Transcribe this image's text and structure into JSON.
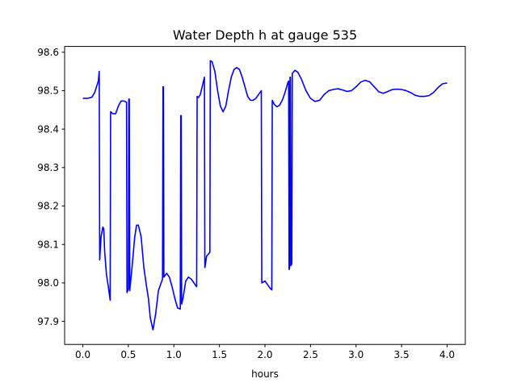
{
  "chart_data": {
    "type": "line",
    "title": "Water Depth h at gauge 535",
    "xlabel": "hours",
    "ylabel": "",
    "xlim": [
      -0.2,
      4.2
    ],
    "ylim": [
      97.84,
      98.615
    ],
    "xticks": [
      0.0,
      0.5,
      1.0,
      1.5,
      2.0,
      2.5,
      3.0,
      3.5,
      4.0
    ],
    "xtick_labels": [
      "0.0",
      "0.5",
      "1.0",
      "1.5",
      "2.0",
      "2.5",
      "3.0",
      "3.5",
      "4.0"
    ],
    "yticks": [
      97.9,
      98.0,
      98.1,
      98.2,
      98.3,
      98.4,
      98.5,
      98.6
    ],
    "ytick_labels": [
      "97.9",
      "98.0",
      "98.1",
      "98.2",
      "98.3",
      "98.4",
      "98.5",
      "98.6"
    ],
    "grid": false,
    "colors": {
      "series": "#0000ff"
    },
    "series": [
      {
        "name": "",
        "points": [
          [
            0.0,
            98.48
          ],
          [
            0.05,
            98.48
          ],
          [
            0.1,
            98.483
          ],
          [
            0.13,
            98.495
          ],
          [
            0.15,
            98.51
          ],
          [
            0.17,
            98.525
          ],
          [
            0.18,
            98.55
          ],
          [
            0.185,
            98.06
          ],
          [
            0.2,
            98.12
          ],
          [
            0.22,
            98.145
          ],
          [
            0.23,
            98.14
          ],
          [
            0.24,
            98.08
          ],
          [
            0.26,
            98.02
          ],
          [
            0.28,
            97.99
          ],
          [
            0.3,
            97.955
          ],
          [
            0.305,
            98.445
          ],
          [
            0.33,
            98.44
          ],
          [
            0.36,
            98.44
          ],
          [
            0.39,
            98.46
          ],
          [
            0.42,
            98.473
          ],
          [
            0.45,
            98.473
          ],
          [
            0.48,
            98.47
          ],
          [
            0.485,
            97.975
          ],
          [
            0.5,
            97.985
          ],
          [
            0.505,
            98.478
          ],
          [
            0.51,
            98.478
          ],
          [
            0.515,
            97.98
          ],
          [
            0.54,
            98.04
          ],
          [
            0.57,
            98.12
          ],
          [
            0.59,
            98.15
          ],
          [
            0.61,
            98.15
          ],
          [
            0.64,
            98.12
          ],
          [
            0.67,
            98.04
          ],
          [
            0.7,
            97.99
          ],
          [
            0.72,
            97.96
          ],
          [
            0.74,
            97.91
          ],
          [
            0.77,
            97.878
          ],
          [
            0.8,
            97.92
          ],
          [
            0.83,
            97.98
          ],
          [
            0.86,
            98.0
          ],
          [
            0.875,
            98.01
          ],
          [
            0.88,
            98.51
          ],
          [
            0.885,
            98.51
          ],
          [
            0.89,
            98.015
          ],
          [
            0.92,
            98.025
          ],
          [
            0.95,
            98.015
          ],
          [
            0.98,
            97.99
          ],
          [
            1.01,
            97.96
          ],
          [
            1.04,
            97.935
          ],
          [
            1.07,
            97.932
          ],
          [
            1.075,
            98.435
          ],
          [
            1.08,
            98.435
          ],
          [
            1.085,
            97.945
          ],
          [
            1.1,
            97.96
          ],
          [
            1.13,
            98.005
          ],
          [
            1.16,
            98.015
          ],
          [
            1.19,
            98.01
          ],
          [
            1.22,
            98.0
          ],
          [
            1.25,
            97.99
          ],
          [
            1.255,
            98.485
          ],
          [
            1.27,
            98.482
          ],
          [
            1.29,
            98.49
          ],
          [
            1.31,
            98.51
          ],
          [
            1.335,
            98.535
          ],
          [
            1.34,
            98.04
          ],
          [
            1.36,
            98.07
          ],
          [
            1.38,
            98.075
          ],
          [
            1.395,
            98.08
          ],
          [
            1.4,
            98.578
          ],
          [
            1.42,
            98.575
          ],
          [
            1.45,
            98.55
          ],
          [
            1.48,
            98.5
          ],
          [
            1.51,
            98.46
          ],
          [
            1.54,
            98.445
          ],
          [
            1.57,
            98.46
          ],
          [
            1.6,
            98.5
          ],
          [
            1.63,
            98.535
          ],
          [
            1.66,
            98.555
          ],
          [
            1.69,
            98.56
          ],
          [
            1.72,
            98.555
          ],
          [
            1.75,
            98.535
          ],
          [
            1.78,
            98.51
          ],
          [
            1.81,
            98.485
          ],
          [
            1.84,
            98.475
          ],
          [
            1.87,
            98.475
          ],
          [
            1.9,
            98.48
          ],
          [
            1.93,
            98.49
          ],
          [
            1.96,
            98.5
          ],
          [
            1.965,
            98.0
          ],
          [
            2.0,
            98.005
          ],
          [
            2.03,
            97.995
          ],
          [
            2.06,
            97.985
          ],
          [
            2.075,
            97.982
          ],
          [
            2.08,
            98.475
          ],
          [
            2.1,
            98.465
          ],
          [
            2.13,
            98.458
          ],
          [
            2.16,
            98.462
          ],
          [
            2.19,
            98.475
          ],
          [
            2.22,
            98.495
          ],
          [
            2.25,
            98.52
          ],
          [
            2.26,
            98.525
          ],
          [
            2.265,
            98.035
          ],
          [
            2.27,
            98.04
          ],
          [
            2.275,
            98.535
          ],
          [
            2.28,
            98.535
          ],
          [
            2.285,
            98.045
          ],
          [
            2.295,
            98.05
          ],
          [
            2.3,
            98.545
          ],
          [
            2.33,
            98.553
          ],
          [
            2.36,
            98.548
          ],
          [
            2.4,
            98.53
          ],
          [
            2.45,
            98.5
          ],
          [
            2.5,
            98.48
          ],
          [
            2.55,
            98.472
          ],
          [
            2.6,
            98.475
          ],
          [
            2.65,
            98.49
          ],
          [
            2.7,
            98.5
          ],
          [
            2.75,
            98.503
          ],
          [
            2.8,
            98.505
          ],
          [
            2.85,
            98.502
          ],
          [
            2.9,
            98.498
          ],
          [
            2.95,
            98.5
          ],
          [
            3.0,
            98.51
          ],
          [
            3.05,
            98.522
          ],
          [
            3.1,
            98.527
          ],
          [
            3.15,
            98.523
          ],
          [
            3.2,
            98.51
          ],
          [
            3.25,
            98.497
          ],
          [
            3.3,
            98.493
          ],
          [
            3.35,
            98.498
          ],
          [
            3.4,
            98.503
          ],
          [
            3.45,
            98.504
          ],
          [
            3.5,
            98.503
          ],
          [
            3.55,
            98.5
          ],
          [
            3.6,
            98.495
          ],
          [
            3.65,
            98.488
          ],
          [
            3.7,
            98.485
          ],
          [
            3.75,
            98.485
          ],
          [
            3.8,
            98.487
          ],
          [
            3.85,
            98.495
          ],
          [
            3.9,
            98.508
          ],
          [
            3.95,
            98.518
          ],
          [
            4.0,
            98.52
          ]
        ]
      }
    ]
  }
}
